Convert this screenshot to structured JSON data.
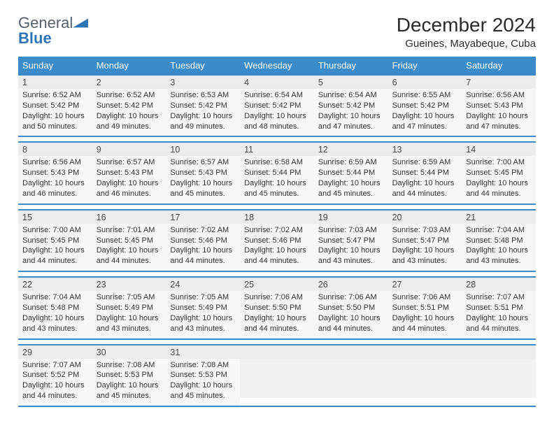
{
  "logo": {
    "text1": "General",
    "text2": "Blue"
  },
  "month": "December 2024",
  "location": "Gueines, Mayabeque, Cuba",
  "colors": {
    "header_bg": "#3b8bca",
    "header_text": "#ffffff",
    "row_border": "#3b8bca",
    "daynum_bg": "#ececec",
    "daynum_text": "#4a4a4a",
    "body_bg": "#f7f7f7",
    "body_text": "#333333",
    "empty_daynum_bg": "#ececec",
    "empty_body_bg": "#f1f1f1",
    "logo_gray": "#6b7580",
    "logo_blue": "#2f74b5"
  },
  "dayLabels": [
    "Sunday",
    "Monday",
    "Tuesday",
    "Wednesday",
    "Thursday",
    "Friday",
    "Saturday"
  ],
  "weeks": [
    [
      {
        "n": "1",
        "sr": "Sunrise: 6:52 AM",
        "ss": "Sunset: 5:42 PM",
        "dl": "Daylight: 10 hours and 50 minutes."
      },
      {
        "n": "2",
        "sr": "Sunrise: 6:52 AM",
        "ss": "Sunset: 5:42 PM",
        "dl": "Daylight: 10 hours and 49 minutes."
      },
      {
        "n": "3",
        "sr": "Sunrise: 6:53 AM",
        "ss": "Sunset: 5:42 PM",
        "dl": "Daylight: 10 hours and 49 minutes."
      },
      {
        "n": "4",
        "sr": "Sunrise: 6:54 AM",
        "ss": "Sunset: 5:42 PM",
        "dl": "Daylight: 10 hours and 48 minutes."
      },
      {
        "n": "5",
        "sr": "Sunrise: 6:54 AM",
        "ss": "Sunset: 5:42 PM",
        "dl": "Daylight: 10 hours and 47 minutes."
      },
      {
        "n": "6",
        "sr": "Sunrise: 6:55 AM",
        "ss": "Sunset: 5:42 PM",
        "dl": "Daylight: 10 hours and 47 minutes."
      },
      {
        "n": "7",
        "sr": "Sunrise: 6:56 AM",
        "ss": "Sunset: 5:43 PM",
        "dl": "Daylight: 10 hours and 47 minutes."
      }
    ],
    [
      {
        "n": "8",
        "sr": "Sunrise: 6:56 AM",
        "ss": "Sunset: 5:43 PM",
        "dl": "Daylight: 10 hours and 46 minutes."
      },
      {
        "n": "9",
        "sr": "Sunrise: 6:57 AM",
        "ss": "Sunset: 5:43 PM",
        "dl": "Daylight: 10 hours and 46 minutes."
      },
      {
        "n": "10",
        "sr": "Sunrise: 6:57 AM",
        "ss": "Sunset: 5:43 PM",
        "dl": "Daylight: 10 hours and 45 minutes."
      },
      {
        "n": "11",
        "sr": "Sunrise: 6:58 AM",
        "ss": "Sunset: 5:44 PM",
        "dl": "Daylight: 10 hours and 45 minutes."
      },
      {
        "n": "12",
        "sr": "Sunrise: 6:59 AM",
        "ss": "Sunset: 5:44 PM",
        "dl": "Daylight: 10 hours and 45 minutes."
      },
      {
        "n": "13",
        "sr": "Sunrise: 6:59 AM",
        "ss": "Sunset: 5:44 PM",
        "dl": "Daylight: 10 hours and 44 minutes."
      },
      {
        "n": "14",
        "sr": "Sunrise: 7:00 AM",
        "ss": "Sunset: 5:45 PM",
        "dl": "Daylight: 10 hours and 44 minutes."
      }
    ],
    [
      {
        "n": "15",
        "sr": "Sunrise: 7:00 AM",
        "ss": "Sunset: 5:45 PM",
        "dl": "Daylight: 10 hours and 44 minutes."
      },
      {
        "n": "16",
        "sr": "Sunrise: 7:01 AM",
        "ss": "Sunset: 5:45 PM",
        "dl": "Daylight: 10 hours and 44 minutes."
      },
      {
        "n": "17",
        "sr": "Sunrise: 7:02 AM",
        "ss": "Sunset: 5:46 PM",
        "dl": "Daylight: 10 hours and 44 minutes."
      },
      {
        "n": "18",
        "sr": "Sunrise: 7:02 AM",
        "ss": "Sunset: 5:46 PM",
        "dl": "Daylight: 10 hours and 44 minutes."
      },
      {
        "n": "19",
        "sr": "Sunrise: 7:03 AM",
        "ss": "Sunset: 5:47 PM",
        "dl": "Daylight: 10 hours and 43 minutes."
      },
      {
        "n": "20",
        "sr": "Sunrise: 7:03 AM",
        "ss": "Sunset: 5:47 PM",
        "dl": "Daylight: 10 hours and 43 minutes."
      },
      {
        "n": "21",
        "sr": "Sunrise: 7:04 AM",
        "ss": "Sunset: 5:48 PM",
        "dl": "Daylight: 10 hours and 43 minutes."
      }
    ],
    [
      {
        "n": "22",
        "sr": "Sunrise: 7:04 AM",
        "ss": "Sunset: 5:48 PM",
        "dl": "Daylight: 10 hours and 43 minutes."
      },
      {
        "n": "23",
        "sr": "Sunrise: 7:05 AM",
        "ss": "Sunset: 5:49 PM",
        "dl": "Daylight: 10 hours and 43 minutes."
      },
      {
        "n": "24",
        "sr": "Sunrise: 7:05 AM",
        "ss": "Sunset: 5:49 PM",
        "dl": "Daylight: 10 hours and 43 minutes."
      },
      {
        "n": "25",
        "sr": "Sunrise: 7:06 AM",
        "ss": "Sunset: 5:50 PM",
        "dl": "Daylight: 10 hours and 44 minutes."
      },
      {
        "n": "26",
        "sr": "Sunrise: 7:06 AM",
        "ss": "Sunset: 5:50 PM",
        "dl": "Daylight: 10 hours and 44 minutes."
      },
      {
        "n": "27",
        "sr": "Sunrise: 7:06 AM",
        "ss": "Sunset: 5:51 PM",
        "dl": "Daylight: 10 hours and 44 minutes."
      },
      {
        "n": "28",
        "sr": "Sunrise: 7:07 AM",
        "ss": "Sunset: 5:51 PM",
        "dl": "Daylight: 10 hours and 44 minutes."
      }
    ],
    [
      {
        "n": "29",
        "sr": "Sunrise: 7:07 AM",
        "ss": "Sunset: 5:52 PM",
        "dl": "Daylight: 10 hours and 44 minutes."
      },
      {
        "n": "30",
        "sr": "Sunrise: 7:08 AM",
        "ss": "Sunset: 5:53 PM",
        "dl": "Daylight: 10 hours and 45 minutes."
      },
      {
        "n": "31",
        "sr": "Sunrise: 7:08 AM",
        "ss": "Sunset: 5:53 PM",
        "dl": "Daylight: 10 hours and 45 minutes."
      },
      {
        "empty": true
      },
      {
        "empty": true
      },
      {
        "empty": true
      },
      {
        "empty": true
      }
    ]
  ]
}
